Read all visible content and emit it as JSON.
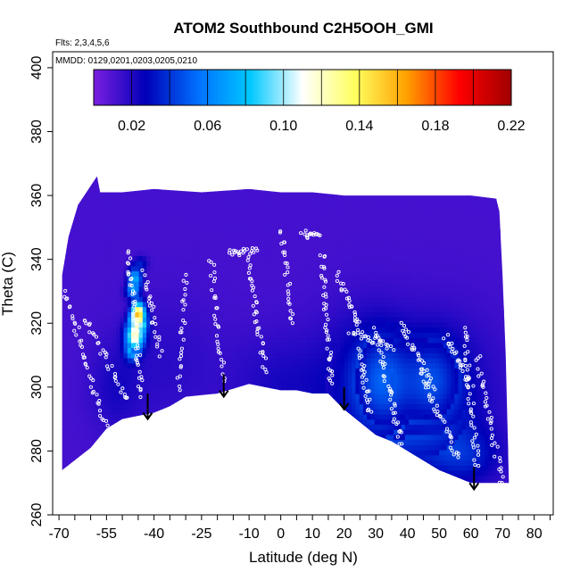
{
  "chart_data": {
    "type": "heatmap",
    "title": "ATOM2 Southbound C2H5OOH_GMI",
    "flights_label": "Flts: 2,3,4,5,6",
    "dates_label": "MMDD: 0129,0201,0203,0205,0210",
    "xlabel": "Latitude (deg N)",
    "ylabel": "Theta (C)",
    "xlim": [
      -72,
      86
    ],
    "ylim": [
      260,
      405
    ],
    "x_ticks": [
      -70,
      -65,
      -60,
      -55,
      -50,
      -45,
      -40,
      -35,
      -30,
      -25,
      -20,
      -15,
      -10,
      -5,
      0,
      5,
      10,
      15,
      20,
      25,
      30,
      35,
      40,
      45,
      50,
      55,
      60,
      65,
      70,
      75,
      80,
      85
    ],
    "x_tick_labels": [
      "-70",
      "-55",
      "-40",
      "-25",
      "-10",
      "0",
      "10",
      "20",
      "30",
      "40",
      "50",
      "60",
      "70",
      "80"
    ],
    "x_tick_label_values": [
      -70,
      -55,
      -40,
      -25,
      -10,
      0,
      10,
      20,
      30,
      40,
      50,
      60,
      70,
      80
    ],
    "y_ticks": [
      260,
      280,
      300,
      320,
      340,
      360,
      380,
      400
    ],
    "y_tick_labels": [
      "260",
      "280",
      "300",
      "320",
      "340",
      "360",
      "380",
      "400"
    ],
    "colorbar": {
      "range": [
        0.0,
        0.22
      ],
      "tick_labels": [
        "0.02",
        "0.06",
        "0.10",
        "0.14",
        "0.18",
        "0.22"
      ],
      "tick_values": [
        0.02,
        0.06,
        0.1,
        0.14,
        0.18,
        0.22
      ],
      "divisions": [
        0.02,
        0.04,
        0.06,
        0.08,
        0.1,
        0.12,
        0.14,
        0.16,
        0.18,
        0.2
      ],
      "colors": [
        "#7b1fe0",
        "#0000b8",
        "#0070ff",
        "#00c8ff",
        "#ffffff",
        "#ffff60",
        "#ffa000",
        "#ff0000",
        "#a00000"
      ]
    },
    "field": {
      "background_value": 0.012,
      "lower_boundary": [
        [
          -69,
          274
        ],
        [
          -60,
          281
        ],
        [
          -55,
          287
        ],
        [
          -50,
          290
        ],
        [
          -45,
          291
        ],
        [
          -40,
          292
        ],
        [
          -35,
          294
        ],
        [
          -30,
          297
        ],
        [
          -20,
          298
        ],
        [
          -10,
          301
        ],
        [
          -5,
          300
        ],
        [
          0,
          299
        ],
        [
          5,
          299
        ],
        [
          10,
          298
        ],
        [
          15,
          298
        ],
        [
          20,
          293
        ],
        [
          25,
          289
        ],
        [
          30,
          285
        ],
        [
          35,
          283
        ],
        [
          40,
          280
        ],
        [
          45,
          277
        ],
        [
          50,
          274
        ],
        [
          55,
          272
        ],
        [
          60,
          270
        ],
        [
          72,
          270
        ]
      ],
      "upper_boundary": [
        [
          -69,
          335
        ],
        [
          -67,
          347
        ],
        [
          -64,
          357
        ],
        [
          -58,
          366
        ],
        [
          -57,
          361
        ],
        [
          -50,
          361
        ],
        [
          -40,
          362
        ],
        [
          -25,
          361
        ],
        [
          -10,
          362
        ],
        [
          0,
          361
        ],
        [
          10,
          361
        ],
        [
          20,
          360
        ],
        [
          30,
          360
        ],
        [
          40,
          360
        ],
        [
          50,
          360
        ],
        [
          60,
          360
        ],
        [
          68,
          359
        ],
        [
          69,
          355
        ],
        [
          70,
          335
        ],
        [
          71,
          310
        ],
        [
          72,
          270
        ]
      ],
      "blobs": [
        {
          "lon": 32,
          "theta": 302,
          "sx": 6,
          "sy": 10,
          "value": 0.052
        },
        {
          "lon": 48,
          "theta": 302,
          "sx": 6,
          "sy": 9,
          "value": 0.046
        },
        {
          "lon": 25,
          "theta": 300,
          "sx": 10,
          "sy": 16,
          "value": 0.028
        },
        {
          "lon": 50,
          "theta": 300,
          "sx": 14,
          "sy": 16,
          "value": 0.026
        },
        {
          "lon": 0,
          "theta": 300,
          "sx": 12,
          "sy": 12,
          "value": 0.022
        },
        {
          "lon": -35,
          "theta": 308,
          "sx": 10,
          "sy": 14,
          "value": 0.018
        },
        {
          "lon": -52,
          "theta": 300,
          "sx": 6,
          "sy": 10,
          "value": 0.022
        },
        {
          "lon": 40,
          "theta": 285,
          "sx": 14,
          "sy": 8,
          "value": 0.028
        },
        {
          "lon": 58,
          "theta": 278,
          "sx": 8,
          "sy": 6,
          "value": 0.03
        }
      ],
      "hotspots": [
        {
          "lon": -45,
          "theta": 323,
          "sx": 1.5,
          "sy": 2.5,
          "value": 0.16
        },
        {
          "lon": -46,
          "theta": 316,
          "sx": 2,
          "sy": 3,
          "value": 0.12
        },
        {
          "lon": -46,
          "theta": 334,
          "sx": 1.5,
          "sy": 2.5,
          "value": 0.075
        },
        {
          "lon": -47,
          "theta": 330,
          "sx": 1.5,
          "sy": 1.5,
          "value": 0.05
        },
        {
          "lon": -45,
          "theta": 320,
          "sx": 2,
          "sy": 2,
          "value": 0.06
        },
        {
          "lon": -47,
          "theta": 311,
          "sx": 1.5,
          "sy": 2,
          "value": 0.05
        },
        {
          "lon": -44,
          "theta": 339,
          "sx": 1.5,
          "sy": 1.5,
          "value": 0.03
        }
      ]
    },
    "flight_tracks": [
      {
        "lon0": -68,
        "theta0": 330,
        "lon1": -55,
        "theta1": 286,
        "n": 40
      },
      {
        "lon0": -62,
        "theta0": 322,
        "lon1": -48,
        "theta1": 296,
        "n": 30
      },
      {
        "lon0": -48,
        "theta0": 342,
        "lon1": -44,
        "theta1": 298,
        "n": 45
      },
      {
        "lon0": -43,
        "theta0": 336,
        "lon1": -38,
        "theta1": 310,
        "n": 25
      },
      {
        "lon0": -30,
        "theta0": 335,
        "lon1": -32,
        "theta1": 300,
        "n": 25
      },
      {
        "lon0": -22,
        "theta0": 340,
        "lon1": -18,
        "theta1": 302,
        "n": 30
      },
      {
        "lon0": -16,
        "theta0": 342,
        "lon1": -8,
        "theta1": 343,
        "n": 20
      },
      {
        "lon0": -10,
        "theta0": 340,
        "lon1": -5,
        "theta1": 305,
        "n": 35
      },
      {
        "lon0": 0,
        "theta0": 349,
        "lon1": 4,
        "theta1": 320,
        "n": 25
      },
      {
        "lon0": 7,
        "theta0": 348,
        "lon1": 12,
        "theta1": 347,
        "n": 15
      },
      {
        "lon0": 13,
        "theta0": 342,
        "lon1": 16,
        "theta1": 300,
        "n": 40
      },
      {
        "lon0": 18,
        "theta0": 335,
        "lon1": 25,
        "theta1": 318,
        "n": 25
      },
      {
        "lon0": 22,
        "theta0": 318,
        "lon1": 35,
        "theta1": 312,
        "n": 25
      },
      {
        "lon0": 25,
        "theta0": 312,
        "lon1": 28,
        "theta1": 292,
        "n": 25
      },
      {
        "lon0": 30,
        "theta0": 318,
        "lon1": 38,
        "theta1": 282,
        "n": 40
      },
      {
        "lon0": 38,
        "theta0": 320,
        "lon1": 48,
        "theta1": 300,
        "n": 30
      },
      {
        "lon0": 44,
        "theta0": 305,
        "lon1": 56,
        "theta1": 278,
        "n": 35
      },
      {
        "lon0": 52,
        "theta0": 316,
        "lon1": 60,
        "theta1": 300,
        "n": 25
      },
      {
        "lon0": 58,
        "theta0": 318,
        "lon1": 62,
        "theta1": 275,
        "n": 40
      },
      {
        "lon0": 62,
        "theta0": 310,
        "lon1": 70,
        "theta1": 270,
        "n": 35
      }
    ],
    "arrows": [
      {
        "lon": -42,
        "theta_top": 298,
        "theta_tip": 290
      },
      {
        "lon": -18,
        "theta_top": 304,
        "theta_tip": 297
      },
      {
        "lon": 20,
        "theta_top": 300,
        "theta_tip": 293
      },
      {
        "lon": 61,
        "theta_top": 275,
        "theta_tip": 268
      }
    ],
    "grid": false,
    "legend": "colorbar-top"
  }
}
